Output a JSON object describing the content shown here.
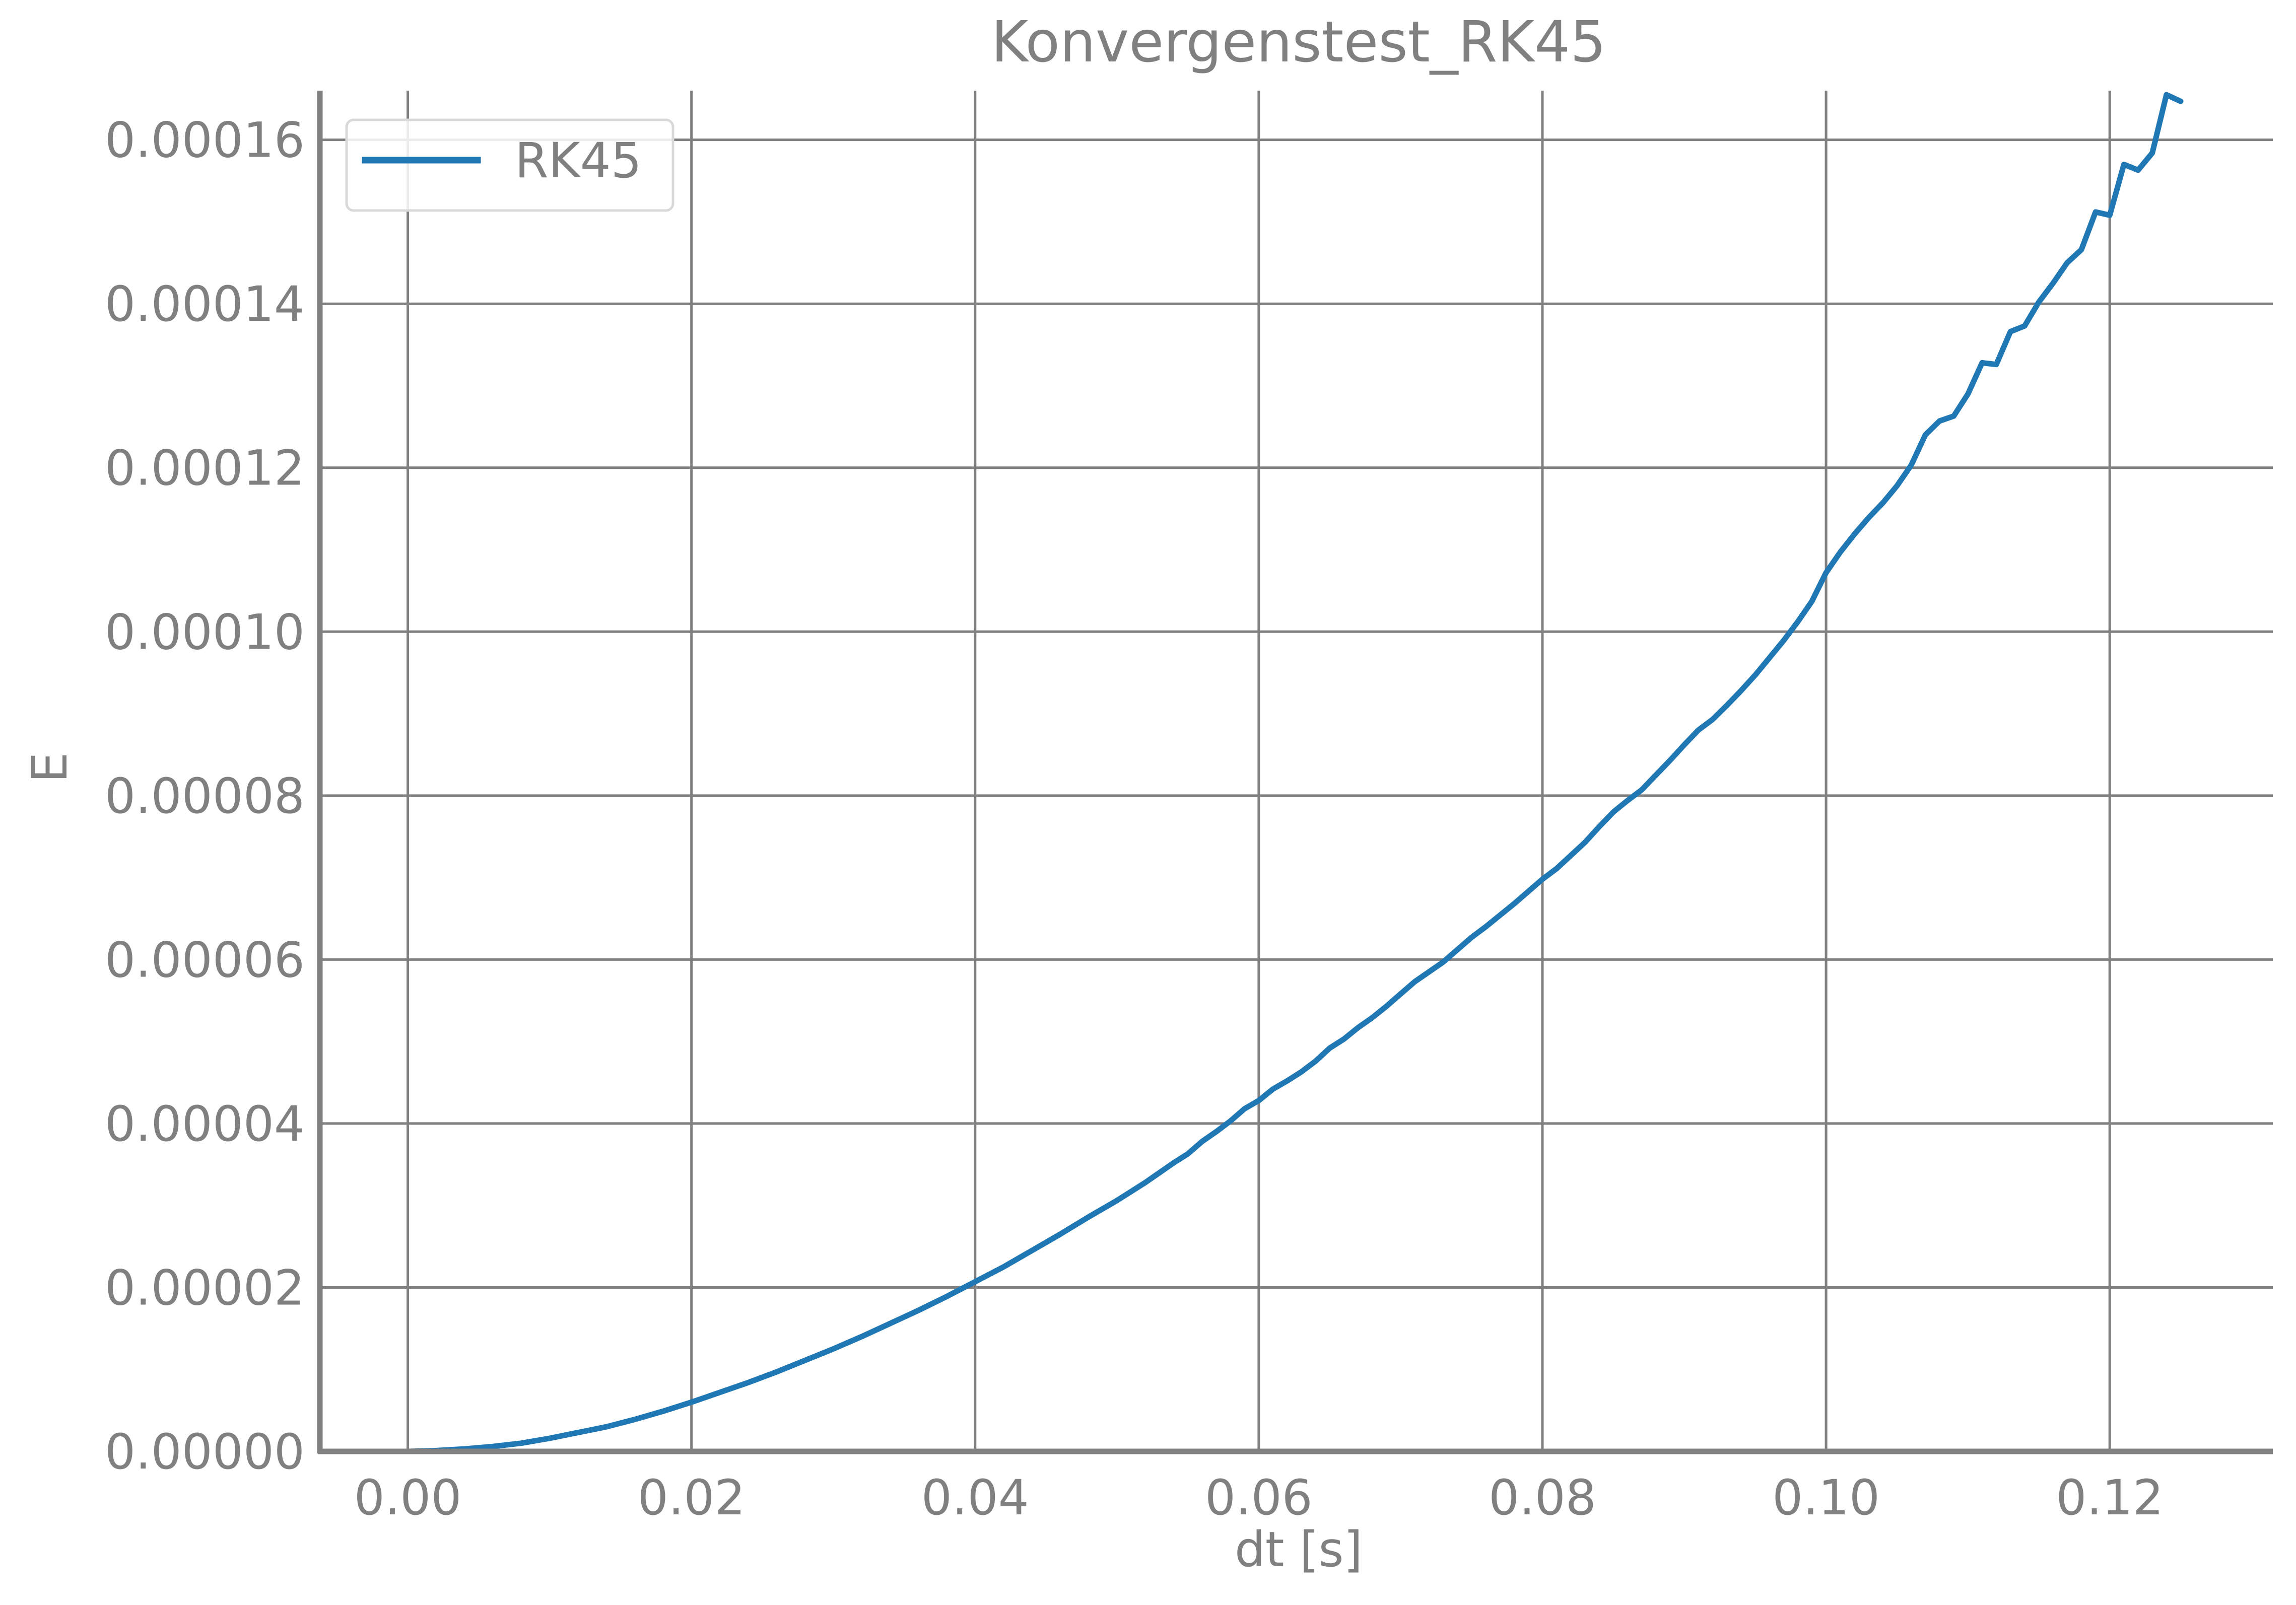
{
  "chart_data": {
    "type": "line",
    "title": "Konvergenstest_RK45",
    "xlabel": "dt [s]",
    "ylabel": "E",
    "xlim": [
      -0.0062,
      0.1315
    ],
    "ylim": [
      0.0,
      0.000166
    ],
    "x_ticks": [
      0.0,
      0.02,
      0.04,
      0.06,
      0.08,
      0.1,
      0.12
    ],
    "x_tick_labels": [
      "0.00",
      "0.02",
      "0.04",
      "0.06",
      "0.08",
      "0.10",
      "0.12"
    ],
    "y_ticks": [
      0.0,
      2e-05,
      4e-05,
      6e-05,
      8e-05,
      0.0001,
      0.00012,
      0.00014,
      0.00016
    ],
    "y_tick_labels": [
      "0.00000",
      "0.00002",
      "0.00004",
      "0.00006",
      "0.00008",
      "0.00010",
      "0.00012",
      "0.00014",
      "0.00016"
    ],
    "grid": true,
    "legend_position": "top-left",
    "colors": {
      "series": "#1f77b4",
      "grid": "#808080",
      "axis": "#808080",
      "text": "#808080"
    },
    "series": [
      {
        "name": "RK45",
        "x": [
          0.0,
          0.002,
          0.004,
          0.006,
          0.008,
          0.01,
          0.012,
          0.014,
          0.016,
          0.018,
          0.02,
          0.022,
          0.024,
          0.026,
          0.028,
          0.03,
          0.032,
          0.034,
          0.036,
          0.038,
          0.04,
          0.042,
          0.044,
          0.046,
          0.048,
          0.05,
          0.052,
          0.054,
          0.055,
          0.056,
          0.057,
          0.058,
          0.059,
          0.06,
          0.061,
          0.062,
          0.063,
          0.064,
          0.065,
          0.066,
          0.067,
          0.068,
          0.069,
          0.07,
          0.071,
          0.072,
          0.073,
          0.074,
          0.075,
          0.076,
          0.077,
          0.078,
          0.079,
          0.08,
          0.081,
          0.082,
          0.083,
          0.084,
          0.085,
          0.086,
          0.087,
          0.088,
          0.089,
          0.09,
          0.091,
          0.092,
          0.093,
          0.094,
          0.095,
          0.096,
          0.097,
          0.098,
          0.099,
          0.1,
          0.101,
          0.102,
          0.103,
          0.104,
          0.105,
          0.106,
          0.107,
          0.108,
          0.109,
          0.11,
          0.111,
          0.112,
          0.113,
          0.114,
          0.115,
          0.116,
          0.117,
          0.118,
          0.119,
          0.12,
          0.121,
          0.122,
          0.123,
          0.124,
          0.125
        ],
        "y": [
          0.0,
          1e-07,
          3e-07,
          6e-07,
          1e-06,
          1.6e-06,
          2.3e-06,
          3e-06,
          3.9e-06,
          4.9e-06,
          6e-06,
          7.2e-06,
          8.4e-06,
          9.7e-06,
          1.11e-05,
          1.25e-05,
          1.4e-05,
          1.56e-05,
          1.72e-05,
          1.89e-05,
          2.07e-05,
          2.25e-05,
          2.45e-05,
          2.65e-05,
          2.86e-05,
          3.06e-05,
          3.28e-05,
          3.52e-05,
          3.63e-05,
          3.78e-05,
          3.9e-05,
          4.03e-05,
          4.18e-05,
          4.28e-05,
          4.42e-05,
          4.52e-05,
          4.63e-05,
          4.76e-05,
          4.92e-05,
          5.03e-05,
          5.17e-05,
          5.29e-05,
          5.43e-05,
          5.58e-05,
          5.73e-05,
          5.85e-05,
          5.97e-05,
          6.12e-05,
          6.27e-05,
          6.4e-05,
          6.54e-05,
          6.68e-05,
          6.83e-05,
          6.98e-05,
          7.11e-05,
          7.27e-05,
          7.43e-05,
          7.62e-05,
          7.8e-05,
          7.94e-05,
          8.07e-05,
          8.25e-05,
          8.43e-05,
          8.62e-05,
          8.8e-05,
          8.93e-05,
          9.1e-05,
          9.28e-05,
          9.47e-05,
          9.68e-05,
          9.89e-05,
          0.0001012,
          0.0001037,
          0.0001072,
          0.0001097,
          0.0001119,
          0.0001139,
          0.0001157,
          0.0001178,
          0.0001203,
          0.000124,
          0.0001257,
          0.0001263,
          0.000129,
          0.0001328,
          0.0001326,
          0.0001366,
          0.0001373,
          0.0001402,
          0.0001425,
          0.000145,
          0.0001466,
          0.0001512,
          0.0001508,
          0.000157,
          0.0001563,
          0.0001584,
          0.0001655,
          0.0001647
        ]
      }
    ]
  }
}
